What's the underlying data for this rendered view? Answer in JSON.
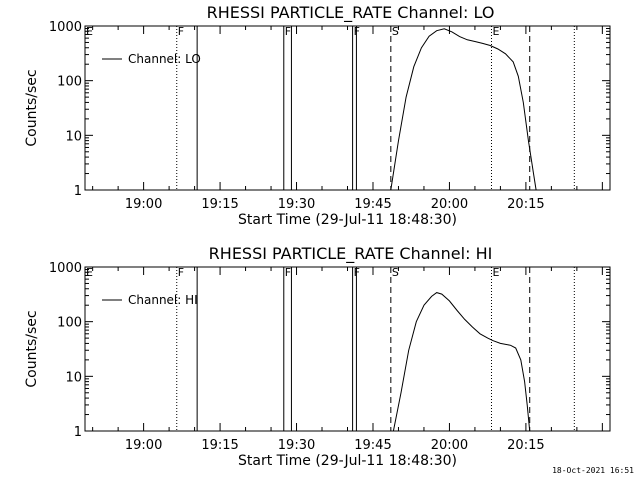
{
  "page": {
    "timestamp": "18-Oct-2021 16:51"
  },
  "chart_data": [
    {
      "type": "line",
      "title": "RHESSI PARTICLE_RATE Channel: LO",
      "xlabel": "Start Time (29-Jul-11 18:48:30)",
      "ylabel": "Counts/sec",
      "yscale": "log",
      "ylim": [
        1,
        1000
      ],
      "xlim": [
        "18:48:30",
        "20:31:30"
      ],
      "x_ticks": [
        "19:00",
        "19:15",
        "19:30",
        "19:45",
        "20:00",
        "20:15"
      ],
      "y_ticks": [
        "1",
        "10",
        "100",
        "1000"
      ],
      "legend": {
        "position": "top-left",
        "entries": [
          "Channel: LO"
        ]
      },
      "markers": [
        {
          "time": "18:48:30",
          "label": "E",
          "style": "dotted"
        },
        {
          "time": "19:06:30",
          "label": "F",
          "style": "dotted"
        },
        {
          "time": "19:10:30",
          "label": "",
          "style": "solid"
        },
        {
          "time": "19:27:30",
          "label": "F",
          "style": "solid"
        },
        {
          "time": "19:29:00",
          "label": "",
          "style": "solid"
        },
        {
          "time": "19:41:00",
          "label": "F",
          "style": "solid"
        },
        {
          "time": "19:41:45",
          "label": "",
          "style": "solid"
        },
        {
          "time": "19:48:30",
          "label": "S",
          "style": "dashed"
        },
        {
          "time": "20:08:15",
          "label": "E",
          "style": "dotted"
        },
        {
          "time": "20:15:45",
          "label": "",
          "style": "dashed"
        },
        {
          "time": "20:24:30",
          "label": "",
          "style": "dotted"
        }
      ],
      "series": [
        {
          "name": "Channel: LO",
          "points": [
            [
              "19:48:30",
              1
            ],
            [
              "19:50:00",
              8
            ],
            [
              "19:51:30",
              50
            ],
            [
              "19:53:00",
              180
            ],
            [
              "19:54:30",
              400
            ],
            [
              "19:56:00",
              650
            ],
            [
              "19:57:30",
              820
            ],
            [
              "19:59:00",
              890
            ],
            [
              "20:00:30",
              780
            ],
            [
              "20:02:00",
              640
            ],
            [
              "20:03:30",
              560
            ],
            [
              "20:05:00",
              520
            ],
            [
              "20:06:30",
              480
            ],
            [
              "20:08:00",
              440
            ],
            [
              "20:09:30",
              380
            ],
            [
              "20:11:00",
              310
            ],
            [
              "20:12:30",
              220
            ],
            [
              "20:13:30",
              120
            ],
            [
              "20:14:30",
              40
            ],
            [
              "20:15:30",
              8
            ],
            [
              "20:16:30",
              2
            ],
            [
              "20:17:00",
              1
            ]
          ]
        }
      ]
    },
    {
      "type": "line",
      "title": "RHESSI PARTICLE_RATE Channel: HI",
      "xlabel": "Start Time (29-Jul-11 18:48:30)",
      "ylabel": "Counts/sec",
      "yscale": "log",
      "ylim": [
        1,
        1000
      ],
      "xlim": [
        "18:48:30",
        "20:31:30"
      ],
      "x_ticks": [
        "19:00",
        "19:15",
        "19:30",
        "19:45",
        "20:00",
        "20:15"
      ],
      "y_ticks": [
        "1",
        "10",
        "100",
        "1000"
      ],
      "legend": {
        "position": "top-left",
        "entries": [
          "Channel: HI"
        ]
      },
      "markers": [
        {
          "time": "18:48:30",
          "label": "E",
          "style": "dotted"
        },
        {
          "time": "19:06:30",
          "label": "F",
          "style": "dotted"
        },
        {
          "time": "19:10:30",
          "label": "",
          "style": "solid"
        },
        {
          "time": "19:27:30",
          "label": "F",
          "style": "solid"
        },
        {
          "time": "19:29:00",
          "label": "",
          "style": "solid"
        },
        {
          "time": "19:41:00",
          "label": "F",
          "style": "solid"
        },
        {
          "time": "19:41:45",
          "label": "",
          "style": "solid"
        },
        {
          "time": "19:48:30",
          "label": "S",
          "style": "dashed"
        },
        {
          "time": "20:08:15",
          "label": "E",
          "style": "dotted"
        },
        {
          "time": "20:15:45",
          "label": "",
          "style": "dashed"
        },
        {
          "time": "20:24:30",
          "label": "",
          "style": "dotted"
        }
      ],
      "series": [
        {
          "name": "Channel: HI",
          "points": [
            [
              "19:49:00",
              1
            ],
            [
              "19:50:30",
              5
            ],
            [
              "19:52:00",
              30
            ],
            [
              "19:53:30",
              100
            ],
            [
              "19:55:00",
              200
            ],
            [
              "19:56:30",
              290
            ],
            [
              "19:57:30",
              340
            ],
            [
              "19:58:30",
              320
            ],
            [
              "20:00:00",
              240
            ],
            [
              "20:01:30",
              160
            ],
            [
              "20:03:00",
              110
            ],
            [
              "20:04:30",
              80
            ],
            [
              "20:06:00",
              60
            ],
            [
              "20:07:30",
              50
            ],
            [
              "20:08:30",
              45
            ],
            [
              "20:10:00",
              40
            ],
            [
              "20:12:00",
              37
            ],
            [
              "20:13:00",
              33
            ],
            [
              "20:14:00",
              20
            ],
            [
              "20:14:45",
              8
            ],
            [
              "20:15:15",
              3
            ],
            [
              "20:15:45",
              1
            ]
          ]
        }
      ]
    }
  ]
}
